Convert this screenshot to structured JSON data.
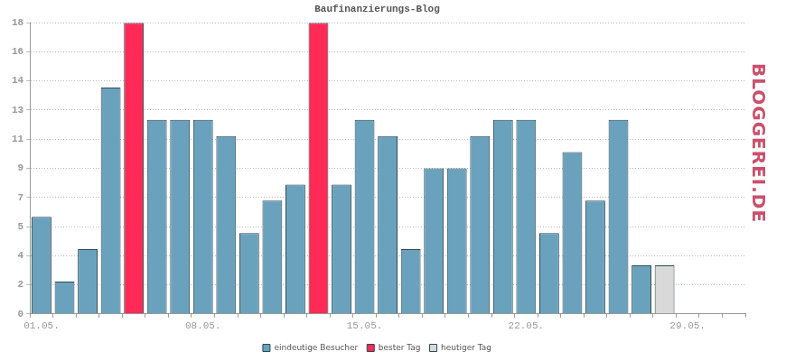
{
  "chart_data": {
    "type": "bar",
    "title": "Baufinanzierungs-Blog",
    "categories": [
      "01.05.",
      null,
      null,
      null,
      null,
      null,
      null,
      "08.05.",
      null,
      null,
      null,
      null,
      null,
      null,
      "15.05.",
      null,
      null,
      null,
      null,
      null,
      null,
      "22.05.",
      null,
      null,
      null,
      null,
      null,
      null,
      "29.05.",
      null,
      null
    ],
    "series": [
      {
        "name": "eindeutige Besucher",
        "color": "#6aa2bd",
        "values": [
          6,
          2,
          4,
          14,
          null,
          12,
          12,
          12,
          11,
          5,
          7,
          8,
          null,
          8,
          12,
          11,
          4,
          9,
          9,
          11,
          12,
          12,
          5,
          10,
          7,
          12,
          3,
          null,
          null,
          null,
          null
        ]
      },
      {
        "name": "bester Tag",
        "color": "#ff2a55",
        "values": [
          null,
          null,
          null,
          null,
          18,
          null,
          null,
          null,
          null,
          null,
          null,
          null,
          18,
          null,
          null,
          null,
          null,
          null,
          null,
          null,
          null,
          null,
          null,
          null,
          null,
          null,
          null,
          null,
          null,
          null,
          null
        ]
      },
      {
        "name": "heutiger Tag",
        "color": "#d9d9d9",
        "values": [
          null,
          null,
          null,
          null,
          null,
          null,
          null,
          null,
          null,
          null,
          null,
          null,
          null,
          null,
          null,
          null,
          null,
          null,
          null,
          null,
          null,
          null,
          null,
          null,
          null,
          null,
          null,
          3,
          null,
          null,
          null
        ]
      }
    ],
    "ylim": [
      0,
      18
    ],
    "yticks": [
      0,
      {
        "value": 1.8,
        "label": "2"
      },
      {
        "value": 3.6,
        "label": "4"
      },
      {
        "value": 5.4,
        "label": "5"
      },
      {
        "value": 7.2,
        "label": "7"
      },
      9,
      {
        "value": 10.8,
        "label": "11"
      },
      {
        "value": 12.6,
        "label": "13"
      },
      {
        "value": 14.4,
        "label": "14"
      },
      {
        "value": 16.2,
        "label": "16"
      },
      18
    ],
    "grid": true,
    "legend": "bottom",
    "annotations": [
      "BLOGGEREI.DE"
    ]
  }
}
